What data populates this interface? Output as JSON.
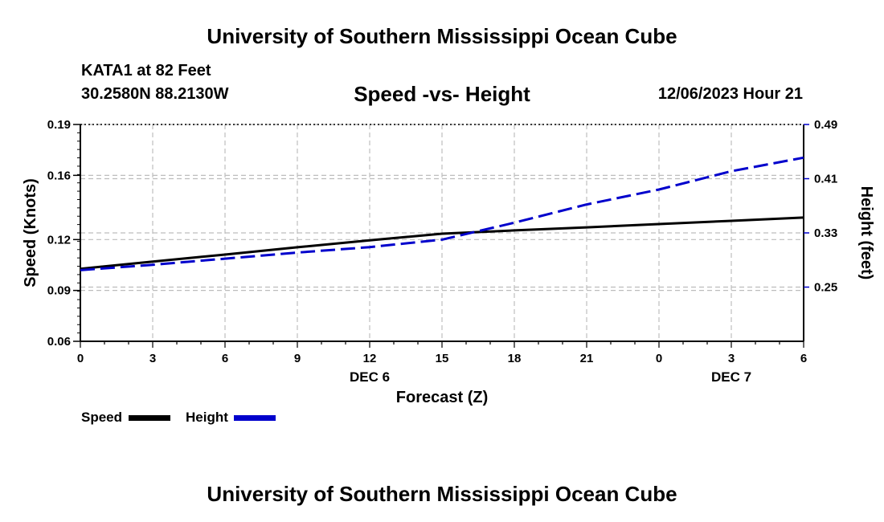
{
  "header": {
    "title": "University of Southern Mississippi Ocean Cube",
    "station": "KATA1 at 82 Feet",
    "coords": "30.2580N  88.2130W",
    "subtitle": "Speed -vs- Height",
    "datetime": "12/06/2023 Hour 21"
  },
  "footer": {
    "title": "University of Southern Mississippi Ocean Cube"
  },
  "chart_data": {
    "type": "line",
    "title": "Speed -vs- Height",
    "xlabel": "Forecast (Z)",
    "ylabel": "Speed (Knots)",
    "y2label": "Height (feet)",
    "x_ticks": [
      "0",
      "3",
      "6",
      "9",
      "12",
      "15",
      "18",
      "21",
      "0",
      "3",
      "6"
    ],
    "x_values": [
      0,
      3,
      6,
      9,
      12,
      15,
      18,
      21,
      24,
      27,
      30
    ],
    "day_labels": [
      {
        "x": 12,
        "label": "DEC 6"
      },
      {
        "x": 27,
        "label": "DEC 7"
      }
    ],
    "ylim": [
      0.06,
      0.19
    ],
    "y_ticks": [
      "0.06",
      "0.09",
      "0.12",
      "0.16",
      "0.19"
    ],
    "y_tick_values": [
      0.06,
      0.0905,
      0.121,
      0.1595,
      0.19
    ],
    "y2lim": [
      0.17,
      0.49
    ],
    "y2_ticks": [
      "0.25",
      "0.33",
      "0.41",
      "0.49"
    ],
    "y2_tick_values": [
      0.25,
      0.33,
      0.41,
      0.49
    ],
    "grid": true,
    "series": [
      {
        "name": "Speed",
        "axis": "left",
        "color": "#000000",
        "dash": "solid",
        "x": [
          0,
          3,
          6,
          9,
          12,
          15,
          18,
          21,
          24,
          27,
          30
        ],
        "values": [
          0.1035,
          0.1078,
          0.112,
          0.1164,
          0.1205,
          0.1245,
          0.1265,
          0.1283,
          0.1303,
          0.1322,
          0.1342
        ]
      },
      {
        "name": "Height",
        "axis": "right",
        "color": "#0000cc",
        "dash": "dashed",
        "x": [
          0,
          3,
          6,
          9,
          12,
          15,
          18,
          21,
          24,
          27,
          30
        ],
        "values": [
          0.275,
          0.283,
          0.292,
          0.301,
          0.309,
          0.32,
          0.345,
          0.372,
          0.394,
          0.421,
          0.441
        ]
      }
    ],
    "legend": [
      {
        "label": "Speed",
        "color": "#000000"
      },
      {
        "label": "Height",
        "color": "#0000cc"
      }
    ]
  }
}
